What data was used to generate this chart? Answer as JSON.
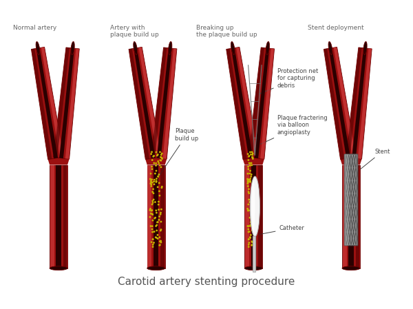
{
  "title": "Carotid artery stenting procedure",
  "title_fontsize": 11,
  "background_color": "#ffffff",
  "panel_titles": [
    "Normal artery",
    "Artery with\nplaque build up",
    "Breaking up\nthe plaque build up",
    "Stent deployment"
  ],
  "panel_title_fontsize": 6.5,
  "panel_title_color": "#666666",
  "annotation_fontsize": 6.0,
  "annotation_color": "#444444",
  "dark_red": "#6B0000",
  "mid_red": "#9B1010",
  "bright_red": "#C42020",
  "highlight_red": "#D44040",
  "lumen_dark": "#2a0000",
  "plaque_yellow": "#C8B400",
  "plaque_yellow2": "#BBAA00",
  "balloon_white": "#F0F0F0",
  "stent_gray": "#888888",
  "catheter_gray": "#CCCCCC"
}
